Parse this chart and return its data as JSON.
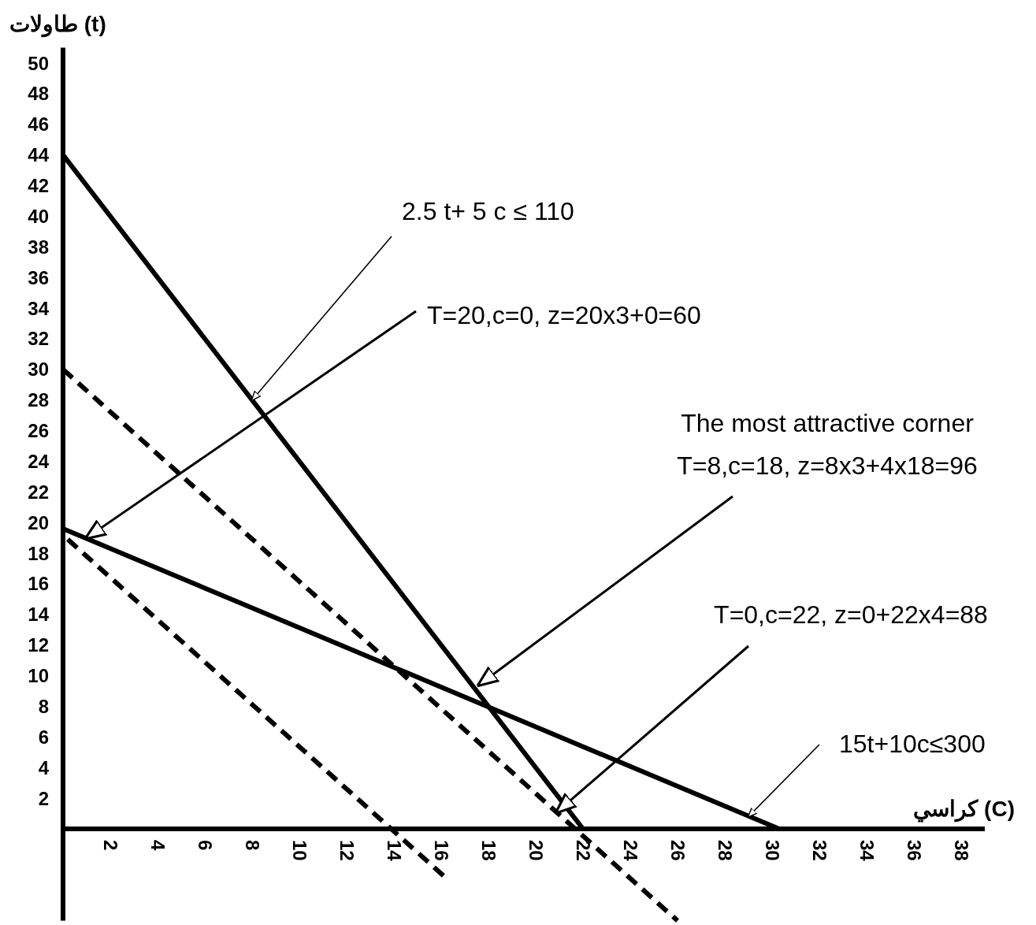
{
  "chart_data": {
    "type": "line",
    "xlabel": "كراسي (C)",
    "ylabel": "طاولات (t)",
    "xlim": [
      0,
      39
    ],
    "ylim": [
      -6,
      51
    ],
    "xticks": [
      2,
      4,
      6,
      8,
      10,
      12,
      14,
      16,
      18,
      20,
      22,
      24,
      26,
      28,
      30,
      32,
      34,
      36,
      38
    ],
    "yticks": [
      2,
      4,
      6,
      8,
      10,
      12,
      14,
      16,
      18,
      20,
      22,
      24,
      26,
      28,
      30,
      32,
      34,
      36,
      38,
      40,
      42,
      44,
      46,
      48,
      50
    ],
    "grid": false,
    "series": [
      {
        "color": "#000000",
        "line_style": "solid",
        "x": [
          0,
          22
        ],
        "values": [
          44,
          0
        ]
      },
      {
        "color": "#000000",
        "line_style": "solid",
        "x": [
          0,
          30.3
        ],
        "values": [
          19.6,
          0
        ]
      },
      {
        "color": "#000000",
        "line_style": "dashed",
        "x": [
          0,
          26
        ],
        "values": [
          30,
          -6
        ]
      },
      {
        "color": "#000000",
        "line_style": "dashed",
        "x": [
          0.2,
          16.2
        ],
        "values": [
          18.9,
          -3.2
        ]
      }
    ],
    "annotations": [
      {
        "text": "2.5 t+ 5 c ≤ 110",
        "x": 8,
        "y": 28
      },
      {
        "text": "T=20,c=0, z=20x3+0=60",
        "x": 1,
        "y": 19
      },
      {
        "text": "The most attractive corner\nT=8,c=18, z=8x3+4x18=96",
        "x": 17.6,
        "y": 9.4
      },
      {
        "text": "T=0,c=22, z=0+22x4=88",
        "x": 20.9,
        "y": 1.1
      },
      {
        "text": "15t+10c≤300",
        "x": 29,
        "y": 0.8
      }
    ]
  }
}
